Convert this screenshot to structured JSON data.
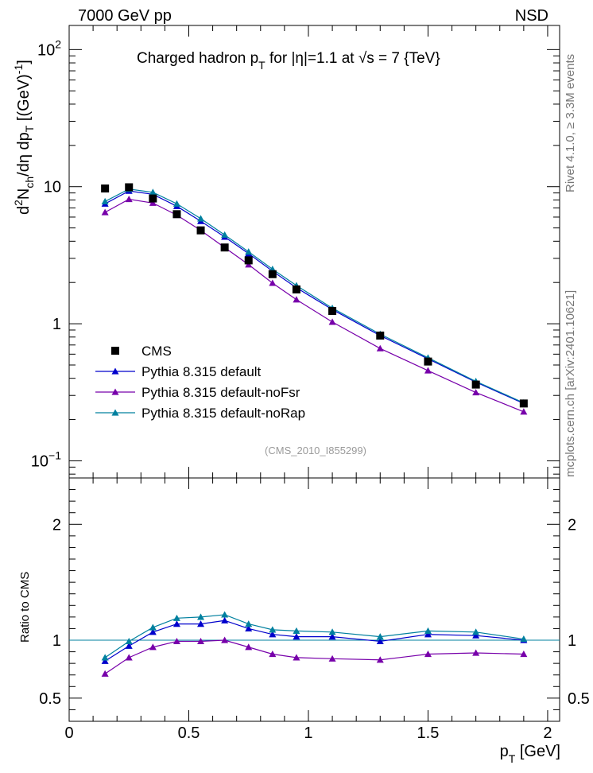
{
  "header": {
    "left": "7000 GeV pp",
    "right": "NSD"
  },
  "side_text": {
    "rivet": "Rivet 4.1.0, ≥ 3.3M events",
    "mcplots": "mcplots.cern.ch [arXiv:2401.10621]"
  },
  "title": {
    "part1": "Charged hadron p",
    "sub1": "T",
    "part2": " for |η|=1.1 at ",
    "sqrt": "√",
    "part3": "s = 7 {TeV}"
  },
  "ylabel_main": {
    "a": "d",
    "a_sup": "2",
    "b": "N",
    "b_sub": "ch",
    "c": "/dη  dp",
    "c_sub": "T",
    "d": " [(GeV)",
    "d_sup": "-1",
    "e": "]"
  },
  "ylabel_ratio": "Ratio to CMS",
  "xlabel": {
    "main": "p",
    "sub": "T",
    "unit": " [GeV]"
  },
  "watermark": "(CMS_2010_I855299)",
  "colors": {
    "data": "#000000",
    "default": "#0000cc",
    "noFsr": "#7700aa",
    "noRap": "#00809f"
  },
  "chart_data": {
    "type": "line",
    "x": [
      0.15,
      0.25,
      0.35,
      0.45,
      0.55,
      0.65,
      0.75,
      0.85,
      0.95,
      1.1,
      1.3,
      1.5,
      1.7,
      1.9
    ],
    "xlim": [
      0,
      2.05
    ],
    "xticks": [
      "0",
      "0.5",
      "1",
      "1.5",
      "2"
    ],
    "main": {
      "yscale": "log",
      "ylim": [
        0.075,
        150
      ],
      "yticks": [
        {
          "value": 0.1,
          "base": "10",
          "exp": "−1"
        },
        {
          "value": 1,
          "base": "1",
          "exp": ""
        },
        {
          "value": 10,
          "base": "10",
          "exp": ""
        },
        {
          "value": 100,
          "base": "10",
          "exp": "2"
        }
      ],
      "series": [
        {
          "name": "CMS",
          "key": "data",
          "marker": "square",
          "values": [
            9.7,
            9.9,
            8.2,
            6.3,
            4.8,
            3.6,
            2.9,
            2.3,
            1.78,
            1.24,
            0.82,
            0.53,
            0.36,
            0.262
          ]
        },
        {
          "name": "Pythia 8.315 default",
          "key": "default",
          "marker": "triangle",
          "values": [
            7.5,
            9.3,
            8.8,
            7.2,
            5.6,
            4.3,
            3.25,
            2.42,
            1.83,
            1.27,
            0.82,
            0.555,
            0.375,
            0.262
          ]
        },
        {
          "name": "Pythia 8.315 default-noFsr",
          "key": "noFsr",
          "marker": "triangle",
          "values": [
            6.5,
            8.1,
            7.6,
            6.2,
            4.8,
            3.6,
            2.7,
            1.98,
            1.5,
            1.03,
            0.66,
            0.455,
            0.315,
            0.228
          ]
        },
        {
          "name": "Pythia 8.315 default-noRap",
          "key": "noRap",
          "marker": "triangle",
          "values": [
            7.8,
            9.6,
            9.1,
            7.5,
            5.85,
            4.45,
            3.35,
            2.5,
            1.9,
            1.3,
            0.84,
            0.565,
            0.38,
            0.265
          ]
        }
      ]
    },
    "ratio": {
      "ylim": [
        0.3,
        2.4
      ],
      "yticks": [
        "0.5",
        "1",
        "2"
      ],
      "series": [
        {
          "name": "Pythia 8.315 default",
          "key": "default",
          "values": [
            0.82,
            0.95,
            1.07,
            1.14,
            1.14,
            1.17,
            1.1,
            1.05,
            1.03,
            1.03,
            0.99,
            1.05,
            1.04,
            1.0
          ]
        },
        {
          "name": "Pythia 8.315 default-noFsr",
          "key": "noFsr",
          "values": [
            0.71,
            0.85,
            0.94,
            0.99,
            0.99,
            1.0,
            0.94,
            0.88,
            0.85,
            0.84,
            0.83,
            0.88,
            0.89,
            0.88
          ]
        },
        {
          "name": "Pythia 8.315 default-noRap",
          "key": "noRap",
          "values": [
            0.85,
            0.99,
            1.11,
            1.19,
            1.2,
            1.22,
            1.14,
            1.09,
            1.08,
            1.07,
            1.03,
            1.08,
            1.07,
            1.01
          ]
        }
      ]
    },
    "legend": [
      "CMS",
      "Pythia 8.315 default",
      "Pythia 8.315 default-noFsr",
      "Pythia 8.315 default-noRap"
    ],
    "legend_position": "bottom-left"
  }
}
